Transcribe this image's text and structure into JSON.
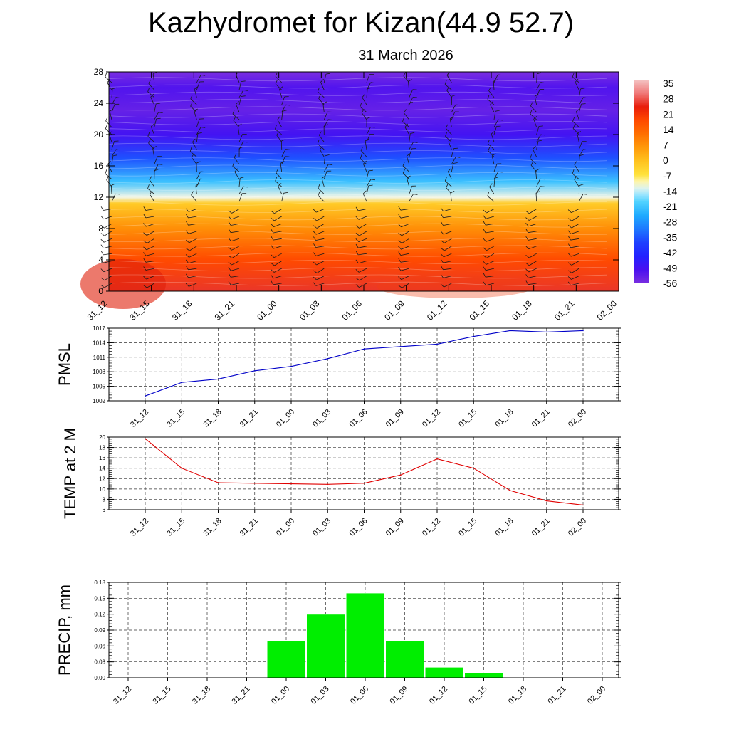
{
  "title": "Kazhydromet for Kizan(44.9 52.7)",
  "subtitle": "31 March 2026",
  "time_labels": [
    "31_12",
    "31_15",
    "31_18",
    "31_21",
    "01_00",
    "01_03",
    "01_06",
    "01_09",
    "01_12",
    "01_15",
    "01_18",
    "01_21",
    "02_00"
  ],
  "chart_data": [
    {
      "type": "heatmap",
      "name": "temperature-wind-cross-section",
      "x": [
        "31_12",
        "31_15",
        "31_18",
        "31_21",
        "01_00",
        "01_03",
        "01_06",
        "01_09",
        "01_12",
        "01_15",
        "01_18",
        "01_21",
        "02_00"
      ],
      "ylim": [
        0,
        28
      ],
      "yticks": [
        "0",
        "4",
        "8",
        "12",
        "16",
        "20",
        "24",
        "28"
      ],
      "colorbar_labels": [
        "35",
        "28",
        "21",
        "14",
        "7",
        "0",
        "-7",
        "-14",
        "-21",
        "-28",
        "-35",
        "-42",
        "-49",
        "-56"
      ],
      "colorbar_range": [
        -63,
        42
      ],
      "freezing_level": 12,
      "profile": [
        {
          "h": 0,
          "t": 30
        },
        {
          "h": 4,
          "t": 21
        },
        {
          "h": 8,
          "t": 9
        },
        {
          "h": 11.2,
          "t": -2
        },
        {
          "h": 12,
          "t": -13
        },
        {
          "h": 14,
          "t": -24
        },
        {
          "h": 17,
          "t": -40
        },
        {
          "h": 20,
          "t": -55
        },
        {
          "h": 23,
          "t": -60
        },
        {
          "h": 26,
          "t": -57
        },
        {
          "h": 28,
          "t": -63
        }
      ]
    },
    {
      "type": "line",
      "name": "pmsl",
      "ylabel": "PMSL",
      "categories": [
        "31_12",
        "31_15",
        "31_18",
        "31_21",
        "01_00",
        "01_03",
        "01_06",
        "01_09",
        "01_12",
        "01_15",
        "01_18",
        "01_21",
        "02_00"
      ],
      "values": [
        1003.0,
        1005.8,
        1006.5,
        1008.2,
        1009.1,
        1010.7,
        1012.7,
        1013.2,
        1013.7,
        1015.3,
        1016.5,
        1016.2,
        1016.5
      ],
      "ylim": [
        1002,
        1017
      ],
      "yticks": [
        "1002",
        "1005",
        "1008",
        "1011",
        "1014",
        "1017"
      ],
      "color": "#0000c8"
    },
    {
      "type": "line",
      "name": "temp-2m",
      "ylabel": "TEMP at 2 M",
      "categories": [
        "31_12",
        "31_15",
        "31_18",
        "31_21",
        "01_00",
        "01_03",
        "01_06",
        "01_09",
        "01_12",
        "01_15",
        "01_18",
        "01_21",
        "02_00"
      ],
      "values": [
        19.7,
        14.0,
        11.2,
        11.1,
        11.0,
        10.9,
        11.1,
        12.7,
        15.8,
        14.0,
        9.7,
        7.7,
        6.9
      ],
      "ylim": [
        6,
        20
      ],
      "yticks": [
        "6",
        "8",
        "10",
        "12",
        "14",
        "16",
        "18",
        "20"
      ],
      "color": "#e00000"
    },
    {
      "type": "bar",
      "name": "precip",
      "ylabel": "PRECIP, mm",
      "categories": [
        "31_12",
        "31_15",
        "31_18",
        "31_21",
        "01_00",
        "01_03",
        "01_06",
        "01_09",
        "01_12",
        "01_15",
        "01_18",
        "01_21",
        "02_00"
      ],
      "values": [
        0,
        0,
        0,
        0,
        0.07,
        0.12,
        0.16,
        0.07,
        0.02,
        0.01,
        0,
        0,
        0
      ],
      "ylim": [
        0,
        0.18
      ],
      "yticks": [
        "0.00",
        "0.03",
        "0.06",
        "0.09",
        "0.12",
        "0.15",
        "0.18"
      ],
      "color": "#00ee00"
    }
  ]
}
